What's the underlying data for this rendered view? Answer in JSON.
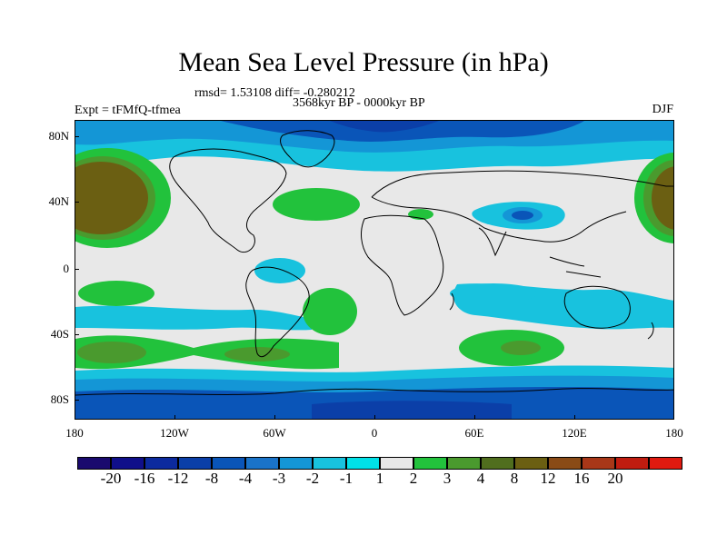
{
  "title": "Mean Sea Level Pressure (in hPa)",
  "stats": "rmsd= 1.53108 diff= -0.280212",
  "period": "3568kyr BP - 0000kyr BP",
  "experiment": "Expt = tFMfQ-tfmea",
  "season": "DJF",
  "lat_labels": [
    "80N",
    "40N",
    "0",
    "40S",
    "80S"
  ],
  "lon_labels": [
    "180",
    "120W",
    "60W",
    "0",
    "60E",
    "120E",
    "180"
  ],
  "colorbar": {
    "labels": [
      "-20",
      "-16",
      "-12",
      "-8",
      "-4",
      "-3",
      "-2",
      "-1",
      "1",
      "2",
      "3",
      "4",
      "8",
      "12",
      "16",
      "20"
    ],
    "colors": [
      "#1a0a6e",
      "#100f8a",
      "#0c2a9e",
      "#0b3fa8",
      "#0a55b8",
      "#1a73c9",
      "#1496d6",
      "#18c2de",
      "#00e1e8",
      "#e8e8e8",
      "#22c23c",
      "#4a9a2e",
      "#506e1e",
      "#6b5f12",
      "#8a4b16",
      "#a83718",
      "#c01c10",
      "#e01a10"
    ]
  },
  "colors": {
    "land_outline": "#000000",
    "neutral": "#e8e8e8"
  }
}
